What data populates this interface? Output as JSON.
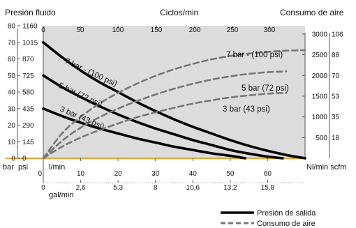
{
  "headers": {
    "left": "Presión fluido",
    "top": "Ciclos/min",
    "right": "Consumo de aire"
  },
  "axes": {
    "top_ticks": [
      "0",
      "50",
      "100",
      "150",
      "200",
      "250",
      "300"
    ],
    "left_bar_ticks": [
      "0",
      "10",
      "20",
      "30",
      "40",
      "50",
      "60",
      "70",
      "80"
    ],
    "left_psi_ticks": [
      "0",
      "145",
      "290",
      "435",
      "580",
      "725",
      "870",
      "1015",
      "1160"
    ],
    "right_nl_ticks": [
      "500",
      "1000",
      "1500",
      "2000",
      "2500",
      "3000"
    ],
    "right_scfm_ticks": [
      "18",
      "35",
      "53",
      "70",
      "88",
      "106"
    ],
    "bottom_lmin_ticks": [
      "0",
      "10",
      "20",
      "30",
      "40",
      "50",
      "60"
    ],
    "bottom_gal_ticks": [
      "0",
      "2,6",
      "5,3",
      "8",
      "10,6",
      "13,2",
      "15,8"
    ],
    "unit_bar": "bar",
    "unit_psi": "psi",
    "unit_lmin": "l/min",
    "unit_gal": "gal/min",
    "unit_right_bottom": "Nl/min scfm"
  },
  "legend": {
    "solid": "Presión de salida",
    "dashed": "Consumo de aire"
  },
  "colors": {
    "plot_bg": "#dcdcdc",
    "baseline": "#e8a23a",
    "solid": "#000000",
    "dashed": "#777777"
  },
  "chart_data": {
    "type": "line",
    "x_primary": {
      "label": "l/min",
      "range": [
        0,
        70
      ]
    },
    "y_left": {
      "label": "bar",
      "range": [
        0,
        80
      ]
    },
    "y_right": {
      "label": "Nl/min",
      "range": [
        0,
        3200
      ]
    },
    "series": [
      {
        "name": "7 bar - (100 psi)",
        "kind": "outlet_pressure",
        "x": [
          0,
          5,
          10,
          15,
          20,
          25,
          30,
          35,
          40,
          45,
          50,
          55,
          60,
          65,
          70
        ],
        "y": [
          70,
          61,
          53,
          46,
          40,
          34,
          28.5,
          23.5,
          19,
          15,
          11,
          7.5,
          4.5,
          2,
          0
        ]
      },
      {
        "name": "5 bar (72 psi)",
        "kind": "outlet_pressure",
        "x": [
          0,
          5,
          10,
          15,
          20,
          25,
          30,
          35,
          40,
          45,
          50,
          55,
          60,
          64
        ],
        "y": [
          50,
          43,
          37,
          31.5,
          26.5,
          22,
          18,
          14.5,
          11,
          8,
          5,
          2.8,
          1,
          0
        ]
      },
      {
        "name": "3 bar (43 psi)",
        "kind": "outlet_pressure",
        "x": [
          0,
          5,
          10,
          15,
          20,
          25,
          30,
          35,
          40,
          45,
          50,
          54
        ],
        "y": [
          30,
          25.5,
          21.5,
          18,
          15,
          12,
          9.5,
          7,
          5,
          3,
          1.5,
          0
        ]
      },
      {
        "name": "7 bar - (100 psi)",
        "kind": "air_consumption",
        "x": [
          0,
          5,
          10,
          15,
          20,
          25,
          30,
          35,
          40,
          45,
          50,
          55,
          60,
          65,
          70
        ],
        "y": [
          0,
          600,
          1000,
          1320,
          1580,
          1800,
          1990,
          2150,
          2280,
          2390,
          2470,
          2530,
          2570,
          2600,
          2610
        ]
      },
      {
        "name": "5 bar (72 psi)",
        "kind": "air_consumption",
        "x": [
          0,
          5,
          10,
          15,
          20,
          25,
          30,
          35,
          40,
          45,
          50,
          55,
          60,
          65
        ],
        "y": [
          0,
          420,
          740,
          990,
          1200,
          1380,
          1540,
          1680,
          1800,
          1900,
          1980,
          2040,
          2080,
          2100
        ]
      },
      {
        "name": "3 bar (43 psi)",
        "kind": "air_consumption",
        "x": [
          0,
          5,
          10,
          15,
          20,
          25,
          30,
          35,
          40,
          45,
          50,
          55,
          60,
          65
        ],
        "y": [
          0,
          280,
          500,
          680,
          840,
          990,
          1110,
          1220,
          1320,
          1400,
          1470,
          1520,
          1560,
          1580
        ]
      }
    ]
  }
}
